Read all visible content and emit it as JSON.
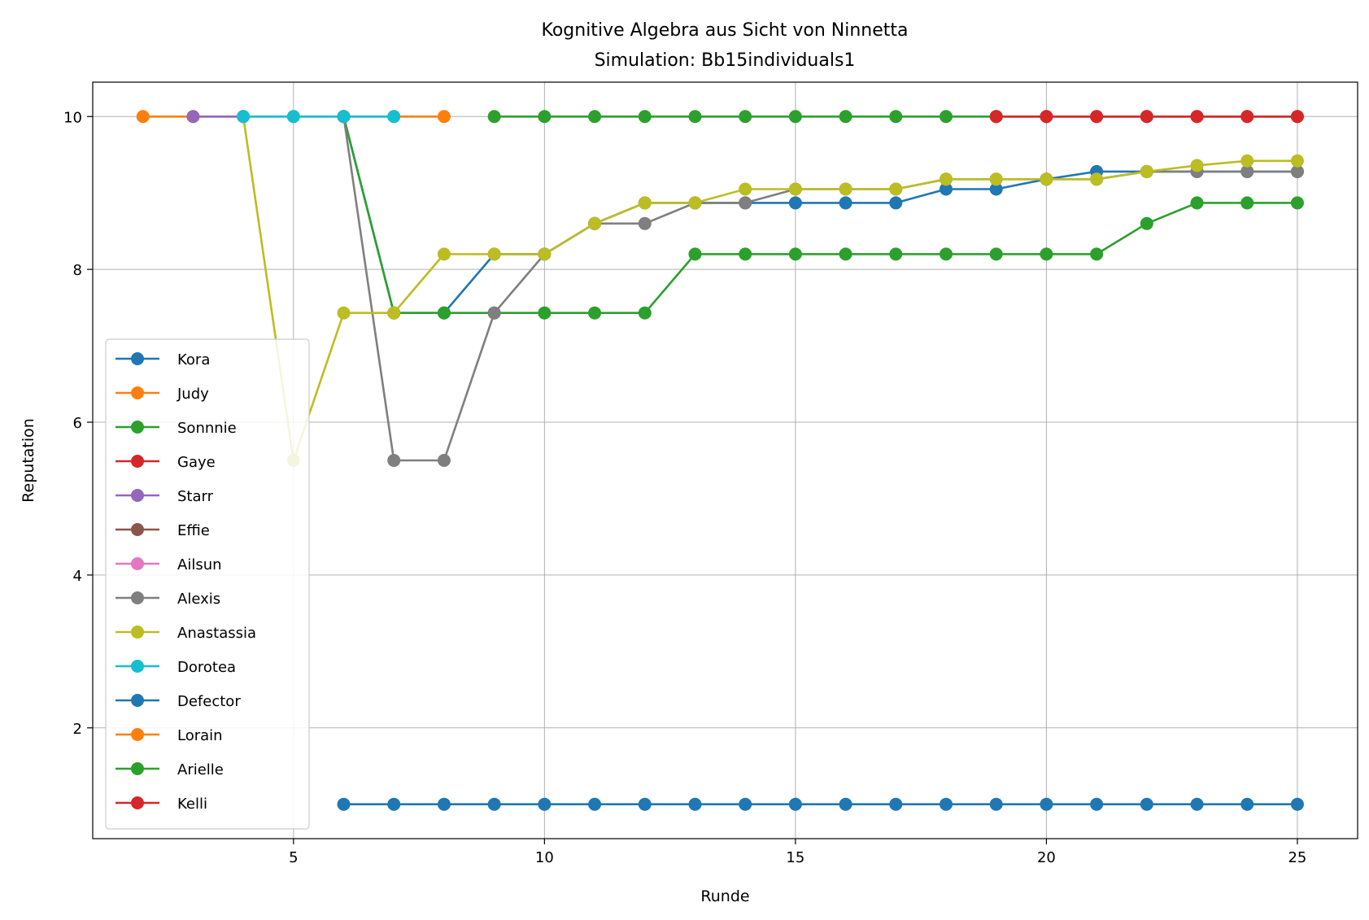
{
  "chart_data": {
    "type": "line",
    "title": "Kognitive Algebra aus Sicht von Ninnetta",
    "subtitle": "Simulation: Bb15individuals1",
    "xlabel": "Runde",
    "ylabel": "Reputation",
    "xlim": [
      1.0,
      26.2
    ],
    "ylim": [
      0.55,
      10.45
    ],
    "xticks": [
      5,
      10,
      15,
      20,
      25
    ],
    "yticks": [
      2,
      4,
      6,
      8,
      10
    ],
    "grid": true,
    "legend_position": "lower-left",
    "series": [
      {
        "name": "Kora",
        "color": "#1f77b4",
        "points": [
          [
            6,
            10
          ],
          [
            7,
            7.43
          ],
          [
            8,
            7.43
          ],
          [
            9,
            8.2
          ],
          [
            10,
            8.2
          ],
          [
            11,
            8.6
          ],
          [
            12,
            8.87
          ],
          [
            13,
            8.87
          ],
          [
            14,
            8.87
          ],
          [
            15,
            8.87
          ],
          [
            16,
            8.87
          ],
          [
            17,
            8.87
          ],
          [
            18,
            9.05
          ],
          [
            19,
            9.05
          ],
          [
            20,
            9.18
          ],
          [
            21,
            9.28
          ],
          [
            22,
            9.28
          ],
          [
            23,
            9.28
          ],
          [
            24,
            9.28
          ],
          [
            25,
            9.28
          ]
        ]
      },
      {
        "name": "Judy",
        "color": "#ff7f0e",
        "points": [
          [
            2,
            10
          ],
          [
            3,
            10
          ],
          [
            4,
            10
          ],
          [
            5,
            10
          ],
          [
            6,
            10
          ],
          [
            7,
            10
          ],
          [
            8,
            10
          ]
        ]
      },
      {
        "name": "Sonnnie",
        "color": "#2ca02c",
        "points": [
          [
            6,
            10
          ],
          [
            7,
            7.43
          ],
          [
            8,
            7.43
          ],
          [
            9,
            7.43
          ],
          [
            10,
            7.43
          ],
          [
            11,
            7.43
          ],
          [
            12,
            7.43
          ],
          [
            13,
            8.2
          ],
          [
            14,
            8.2
          ],
          [
            15,
            8.2
          ],
          [
            16,
            8.2
          ],
          [
            17,
            8.2
          ],
          [
            18,
            8.2
          ],
          [
            19,
            8.2
          ],
          [
            20,
            8.2
          ],
          [
            21,
            8.2
          ],
          [
            22,
            8.6
          ],
          [
            23,
            8.87
          ],
          [
            24,
            8.87
          ],
          [
            25,
            8.87
          ]
        ]
      },
      {
        "name": "Gaye",
        "color": "#d62728",
        "points": [
          [
            19,
            10
          ],
          [
            20,
            10
          ],
          [
            21,
            10
          ],
          [
            22,
            10
          ],
          [
            23,
            10
          ],
          [
            24,
            10
          ],
          [
            25,
            10
          ]
        ]
      },
      {
        "name": "Starr",
        "color": "#9467bd",
        "points": [
          [
            3,
            10
          ],
          [
            4,
            10
          ]
        ]
      },
      {
        "name": "Effie",
        "color": "#8c564b",
        "points": []
      },
      {
        "name": "Ailsun",
        "color": "#e377c2",
        "points": []
      },
      {
        "name": "Alexis",
        "color": "#7f7f7f",
        "points": [
          [
            6,
            10
          ],
          [
            7,
            5.5
          ],
          [
            8,
            5.5
          ],
          [
            9,
            7.43
          ],
          [
            10,
            8.2
          ],
          [
            11,
            8.6
          ],
          [
            12,
            8.6
          ],
          [
            13,
            8.87
          ],
          [
            14,
            8.87
          ],
          [
            15,
            9.05
          ],
          [
            16,
            9.05
          ],
          [
            17,
            9.05
          ],
          [
            18,
            9.18
          ],
          [
            19,
            9.18
          ],
          [
            20,
            9.18
          ],
          [
            21,
            9.18
          ],
          [
            22,
            9.28
          ],
          [
            23,
            9.28
          ],
          [
            24,
            9.28
          ],
          [
            25,
            9.28
          ]
        ]
      },
      {
        "name": "Anastassia",
        "color": "#bcbd22",
        "points": [
          [
            4,
            10
          ],
          [
            5,
            5.5
          ],
          [
            6,
            7.43
          ],
          [
            7,
            7.43
          ],
          [
            8,
            8.2
          ],
          [
            9,
            8.2
          ],
          [
            10,
            8.2
          ],
          [
            11,
            8.6
          ],
          [
            12,
            8.87
          ],
          [
            13,
            8.87
          ],
          [
            14,
            9.05
          ],
          [
            15,
            9.05
          ],
          [
            16,
            9.05
          ],
          [
            17,
            9.05
          ],
          [
            18,
            9.18
          ],
          [
            19,
            9.18
          ],
          [
            20,
            9.18
          ],
          [
            21,
            9.18
          ],
          [
            22,
            9.28
          ],
          [
            23,
            9.36
          ],
          [
            24,
            9.42
          ],
          [
            25,
            9.42
          ]
        ]
      },
      {
        "name": "Dorotea",
        "color": "#17becf",
        "points": [
          [
            4,
            10
          ],
          [
            5,
            10
          ],
          [
            6,
            10
          ],
          [
            7,
            10
          ]
        ]
      },
      {
        "name": "Defector",
        "color": "#1f77b4",
        "points": [
          [
            6,
            1
          ],
          [
            7,
            1
          ],
          [
            8,
            1
          ],
          [
            9,
            1
          ],
          [
            10,
            1
          ],
          [
            11,
            1
          ],
          [
            12,
            1
          ],
          [
            13,
            1
          ],
          [
            14,
            1
          ],
          [
            15,
            1
          ],
          [
            16,
            1
          ],
          [
            17,
            1
          ],
          [
            18,
            1
          ],
          [
            19,
            1
          ],
          [
            20,
            1
          ],
          [
            21,
            1
          ],
          [
            22,
            1
          ],
          [
            23,
            1
          ],
          [
            24,
            1
          ],
          [
            25,
            1
          ]
        ]
      },
      {
        "name": "Lorain",
        "color": "#ff7f0e",
        "points": []
      },
      {
        "name": "Arielle",
        "color": "#2ca02c",
        "points": [
          [
            9,
            10
          ],
          [
            10,
            10
          ],
          [
            11,
            10
          ],
          [
            12,
            10
          ],
          [
            13,
            10
          ],
          [
            14,
            10
          ],
          [
            15,
            10
          ],
          [
            16,
            10
          ],
          [
            17,
            10
          ],
          [
            18,
            10
          ],
          [
            19,
            10
          ]
        ]
      },
      {
        "name": "Kelli",
        "color": "#d62728",
        "points": [
          [
            19,
            10
          ],
          [
            20,
            10
          ],
          [
            21,
            10
          ],
          [
            22,
            10
          ],
          [
            23,
            10
          ],
          [
            24,
            10
          ],
          [
            25,
            10
          ]
        ]
      }
    ]
  }
}
